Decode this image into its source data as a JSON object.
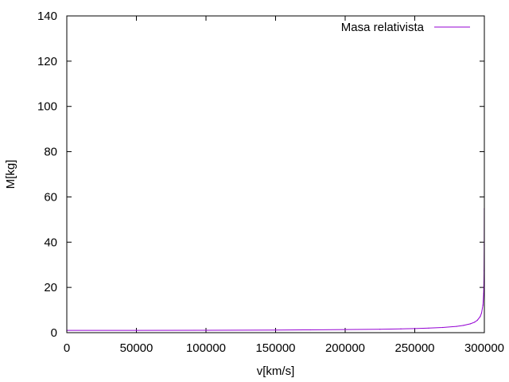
{
  "chart_data": {
    "type": "line",
    "title": "",
    "xlabel": "v[km/s]",
    "ylabel": "M[kg]",
    "xlim": [
      0,
      300000
    ],
    "ylim": [
      0,
      140
    ],
    "xticks": [
      0,
      50000,
      100000,
      150000,
      200000,
      250000,
      300000
    ],
    "xtick_labels": [
      "0",
      "50000",
      "100000",
      "150000",
      "200000",
      "250000",
      "300000"
    ],
    "yticks": [
      0,
      20,
      40,
      60,
      80,
      100,
      120,
      140
    ],
    "ytick_labels": [
      "0",
      "20",
      "40",
      "60",
      "80",
      "100",
      "120",
      "140"
    ],
    "grid": false,
    "legend_position": "top-right",
    "series": [
      {
        "name": "Masa relativista",
        "color": "#9400d3",
        "rest_mass": 1,
        "speed_of_light": 300000,
        "x": [
          0,
          50000,
          100000,
          150000,
          175000,
          200000,
          225000,
          240000,
          250000,
          260000,
          270000,
          280000,
          285000,
          290000,
          293000,
          295000,
          297000,
          298000,
          299000,
          299500,
          299700,
          299800,
          299900,
          299950
        ],
        "values": [
          1.0,
          1.014,
          1.061,
          1.155,
          1.231,
          1.342,
          1.512,
          1.667,
          1.809,
          2.005,
          2.294,
          2.785,
          3.203,
          3.906,
          4.651,
          5.505,
          7.089,
          8.682,
          12.25,
          17.33,
          22.37,
          27.39,
          38.73,
          54.77
        ]
      }
    ]
  }
}
